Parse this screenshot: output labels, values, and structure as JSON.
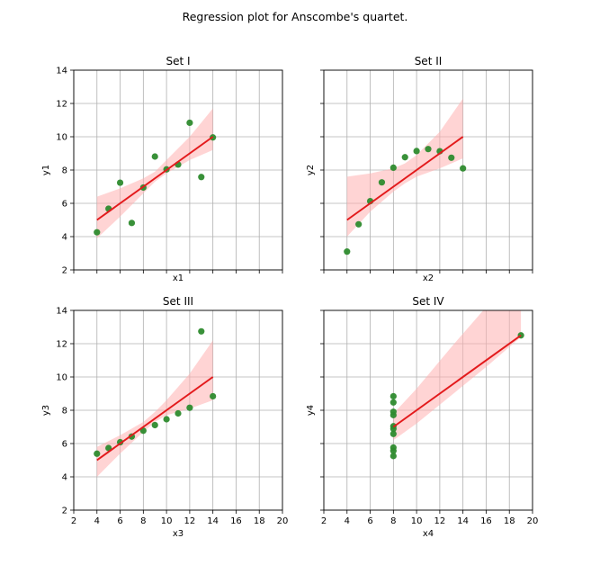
{
  "figure_title": "Regression plot for Anscombe's quartet.",
  "colors": {
    "points": "#2e8b2e",
    "line": "#e31a1c",
    "band": "#ffb0b0",
    "grid": "#b0b0b0"
  },
  "chart_data": [
    {
      "type": "scatter",
      "title": "Set I",
      "xlabel": "x1",
      "ylabel": "y1",
      "x": [
        10,
        8,
        13,
        9,
        11,
        14,
        6,
        4,
        12,
        7,
        5
      ],
      "y": [
        8.04,
        6.95,
        7.58,
        8.81,
        8.33,
        9.96,
        7.24,
        4.26,
        10.84,
        4.82,
        5.68
      ],
      "fit": {
        "x": [
          4,
          14
        ],
        "y": [
          5.0,
          10.0
        ]
      },
      "band": {
        "x": [
          4,
          6,
          8,
          9,
          10,
          12,
          14
        ],
        "lower": [
          3.9,
          5.2,
          6.6,
          7.3,
          7.8,
          8.6,
          9.2
        ],
        "upper": [
          6.4,
          6.9,
          7.5,
          7.9,
          8.6,
          10.0,
          11.7
        ]
      },
      "xlim": [
        2,
        20
      ],
      "ylim": [
        2,
        14
      ],
      "xticks": [
        2,
        4,
        6,
        8,
        10,
        12,
        14,
        16,
        18,
        20
      ],
      "yticks": [
        2,
        4,
        6,
        8,
        10,
        12,
        14
      ],
      "xtick_labels_visible": false,
      "ytick_labels_visible": true,
      "grid": true
    },
    {
      "type": "scatter",
      "title": "Set II",
      "xlabel": "x2",
      "ylabel": "y2",
      "x": [
        10,
        8,
        13,
        9,
        11,
        14,
        6,
        4,
        12,
        7,
        5
      ],
      "y": [
        9.14,
        8.14,
        8.74,
        8.77,
        9.26,
        8.1,
        6.13,
        3.1,
        9.13,
        7.26,
        4.74
      ],
      "fit": {
        "x": [
          4,
          14
        ],
        "y": [
          5.0,
          10.0
        ]
      },
      "band": {
        "x": [
          4,
          6,
          8,
          9,
          10,
          12,
          14
        ],
        "lower": [
          4.0,
          5.5,
          6.7,
          7.2,
          7.6,
          8.1,
          8.7
        ],
        "upper": [
          7.6,
          7.8,
          8.1,
          8.4,
          8.9,
          10.3,
          12.3
        ]
      },
      "xlim": [
        2,
        20
      ],
      "ylim": [
        2,
        14
      ],
      "xticks": [
        2,
        4,
        6,
        8,
        10,
        12,
        14,
        16,
        18,
        20
      ],
      "yticks": [
        2,
        4,
        6,
        8,
        10,
        12,
        14
      ],
      "xtick_labels_visible": false,
      "ytick_labels_visible": false,
      "grid": true
    },
    {
      "type": "scatter",
      "title": "Set III",
      "xlabel": "x3",
      "ylabel": "y3",
      "x": [
        10,
        8,
        13,
        9,
        11,
        14,
        6,
        4,
        12,
        7,
        5
      ],
      "y": [
        7.46,
        6.77,
        12.74,
        7.11,
        7.81,
        8.84,
        6.08,
        5.39,
        8.15,
        6.42,
        5.73
      ],
      "fit": {
        "x": [
          4,
          14
        ],
        "y": [
          5.0,
          10.0
        ]
      },
      "band": {
        "x": [
          4,
          6,
          8,
          9,
          10,
          12,
          14
        ],
        "lower": [
          4.0,
          5.4,
          6.7,
          7.3,
          7.7,
          8.1,
          8.6
        ],
        "upper": [
          5.8,
          6.5,
          7.3,
          7.9,
          8.6,
          10.2,
          12.2
        ]
      },
      "xlim": [
        2,
        20
      ],
      "ylim": [
        2,
        14
      ],
      "xticks": [
        2,
        4,
        6,
        8,
        10,
        12,
        14,
        16,
        18,
        20
      ],
      "yticks": [
        2,
        4,
        6,
        8,
        10,
        12,
        14
      ],
      "xtick_labels_visible": true,
      "ytick_labels_visible": true,
      "grid": true
    },
    {
      "type": "scatter",
      "title": "Set IV",
      "xlabel": "x4",
      "ylabel": "y4",
      "x": [
        8,
        8,
        8,
        8,
        8,
        8,
        8,
        19,
        8,
        8,
        8
      ],
      "y": [
        6.58,
        5.76,
        7.71,
        8.84,
        8.47,
        7.04,
        5.25,
        12.5,
        5.56,
        7.91,
        6.89
      ],
      "fit": {
        "x": [
          8,
          19
        ],
        "y": [
          7.0,
          12.5
        ]
      },
      "band": {
        "x": [
          8,
          10,
          13,
          16,
          19
        ],
        "lower": [
          6.2,
          7.2,
          8.9,
          10.6,
          12.4
        ],
        "upper": [
          7.8,
          9.3,
          11.8,
          14.2,
          14.2
        ]
      },
      "xlim": [
        2,
        20
      ],
      "ylim": [
        2,
        14
      ],
      "xticks": [
        2,
        4,
        6,
        8,
        10,
        12,
        14,
        16,
        18,
        20
      ],
      "yticks": [
        2,
        4,
        6,
        8,
        10,
        12,
        14
      ],
      "xtick_labels_visible": true,
      "ytick_labels_visible": false,
      "grid": true
    }
  ]
}
